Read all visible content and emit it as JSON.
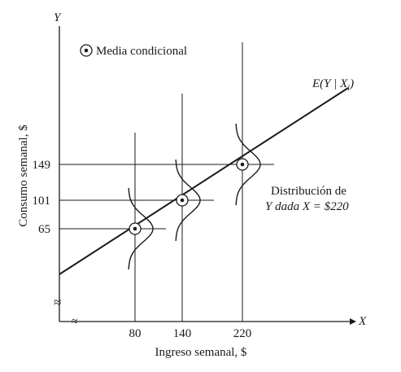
{
  "chart_data": {
    "type": "line",
    "xlabel": "Ingreso semanal, $",
    "ylabel": "Consumo semanal, $",
    "x_axis_letter": "X",
    "y_axis_letter": "Y",
    "x_ticks": [
      "80",
      "140",
      "220"
    ],
    "y_ticks": [
      "149",
      "101",
      "65"
    ],
    "conditional_means": [
      {
        "x": 80,
        "y": 65
      },
      {
        "x": 140,
        "y": 101
      },
      {
        "x": 220,
        "y": 149
      }
    ],
    "legend": {
      "label": "Media condicional"
    },
    "regression_label": {
      "main": "E(Y | X",
      "sub": "i",
      "close": ")"
    },
    "annotation": {
      "line1": "Distribución de",
      "line2": "Y dada X = $220"
    },
    "axis_break_symbol": "≈"
  }
}
